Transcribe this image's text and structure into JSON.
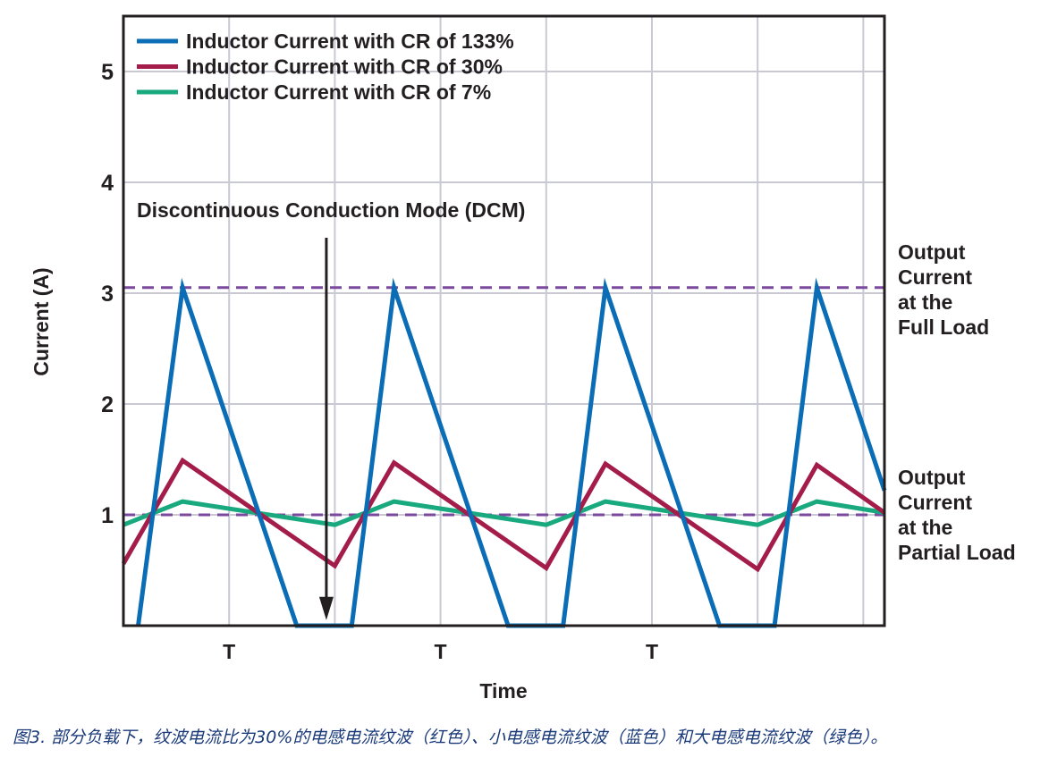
{
  "chart_data": {
    "type": "line",
    "xlabel": "Time",
    "ylabel": "Current (A)",
    "ylim": [
      0,
      5.5
    ],
    "xlim": [
      0,
      3.6
    ],
    "yticks": [
      1,
      2,
      3,
      4,
      5
    ],
    "xtick_labels": [
      {
        "label": "T",
        "x": 0.5
      },
      {
        "label": "T",
        "x": 1.5
      },
      {
        "label": "T",
        "x": 2.5
      }
    ],
    "grid": true,
    "legend_position": "top-left",
    "series": [
      {
        "name": "Inductor Current with CR of 133%",
        "color": "#0a6db5",
        "x": [
          0.07,
          0.28,
          0.82,
          1.08,
          1.28,
          1.82,
          2.08,
          2.28,
          2.82,
          3.08,
          3.28,
          3.6
        ],
        "y": [
          0,
          3.05,
          0,
          0,
          3.05,
          0,
          0,
          3.05,
          0,
          0,
          3.05,
          1.22
        ]
      },
      {
        "name": "Inductor Current with CR of 30%",
        "color": "#a31c4a",
        "x": [
          0.0,
          0.28,
          1.0,
          1.28,
          2.0,
          2.28,
          3.0,
          3.28,
          3.6
        ],
        "y": [
          0.56,
          1.49,
          0.54,
          1.47,
          0.52,
          1.46,
          0.51,
          1.45,
          1.02
        ]
      },
      {
        "name": "Inductor Current with CR of 7%",
        "color": "#19a97e",
        "x": [
          0.0,
          0.28,
          1.0,
          1.28,
          2.0,
          2.28,
          3.0,
          3.28,
          3.6
        ],
        "y": [
          0.91,
          1.12,
          0.91,
          1.12,
          0.91,
          1.12,
          0.91,
          1.12,
          1.02
        ]
      }
    ],
    "reference_lines": [
      {
        "y": 3.05,
        "color": "#7b4a9e",
        "style": "dashed",
        "label": [
          "Output",
          "Current",
          "at the",
          "Full Load"
        ]
      },
      {
        "y": 1.0,
        "color": "#7b4a9e",
        "style": "dashed",
        "label": [
          "Output",
          "Current",
          "at the",
          "Partial Load"
        ]
      }
    ],
    "annotation": {
      "text": "Discontinuous Conduction Mode (DCM)",
      "arrow_x": 0.96,
      "arrow_from_y": 3.5,
      "arrow_to_y": 0.05
    }
  },
  "caption": "图3. 部分负载下，纹波电流比为30%的电感电流纹波（红色）、小电感电流纹波（蓝色）和大电感电流纹波（绿色）。"
}
